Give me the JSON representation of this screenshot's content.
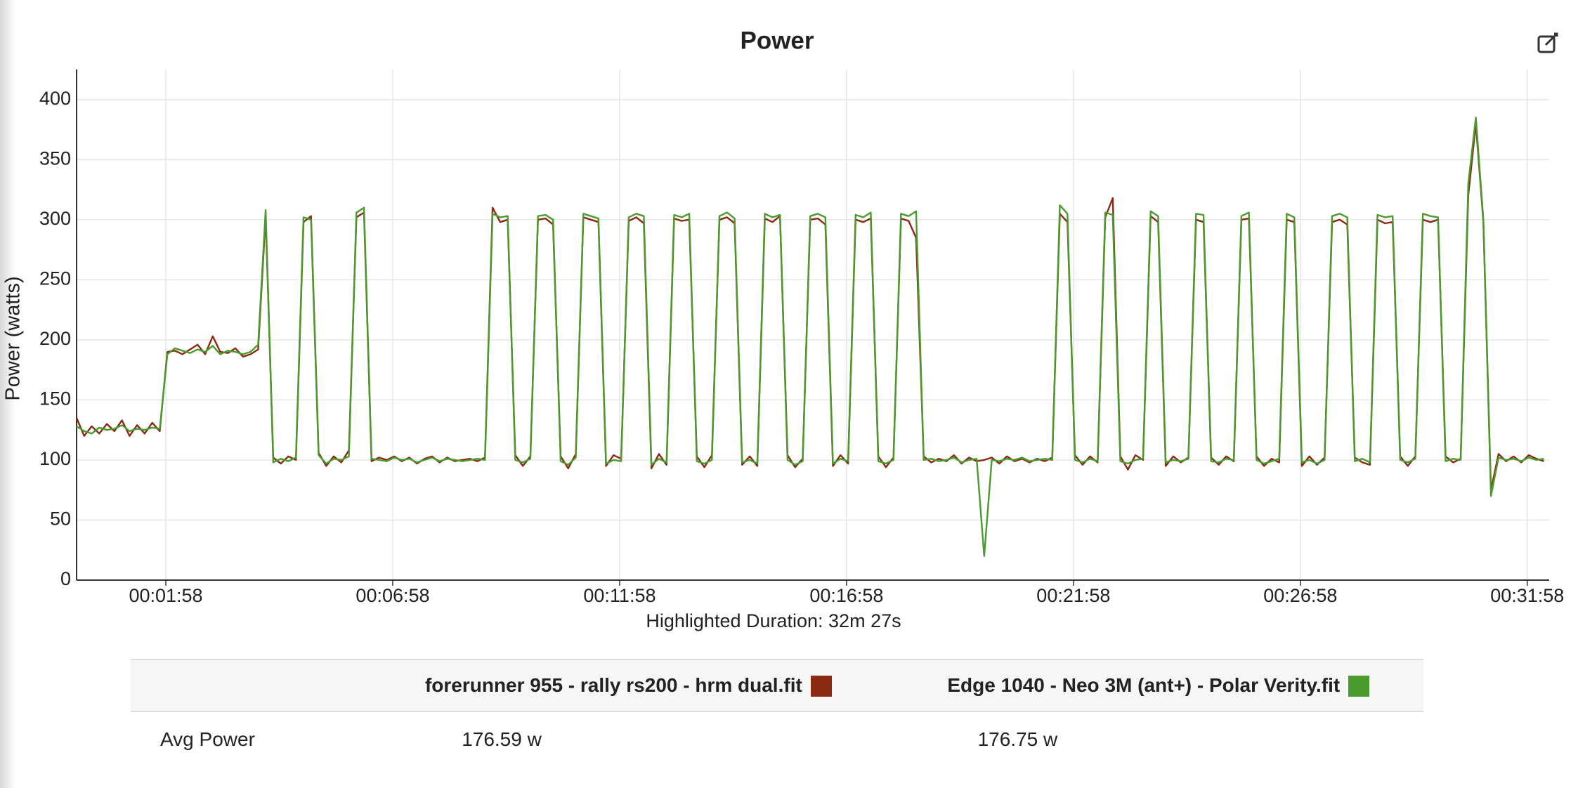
{
  "chart_data": {
    "type": "line",
    "title": "Power",
    "ylabel": "Power (watts)",
    "xlabel": "Highlighted Duration: 32m 27s",
    "grid": true,
    "xlim": [
      0,
      1947
    ],
    "ylim": [
      0,
      425
    ],
    "yticks": [
      0,
      50,
      100,
      150,
      200,
      250,
      300,
      350,
      400
    ],
    "xticks": [
      {
        "value": 118,
        "label": "00:01:58"
      },
      {
        "value": 418,
        "label": "00:06:58"
      },
      {
        "value": 718,
        "label": "00:11:58"
      },
      {
        "value": 1018,
        "label": "00:16:58"
      },
      {
        "value": 1318,
        "label": "00:21:58"
      },
      {
        "value": 1618,
        "label": "00:26:58"
      },
      {
        "value": 1918,
        "label": "00:31:58"
      }
    ],
    "x": [
      0,
      10,
      20,
      30,
      40,
      50,
      60,
      70,
      80,
      90,
      100,
      110,
      120,
      130,
      140,
      150,
      160,
      170,
      180,
      190,
      200,
      210,
      220,
      230,
      240,
      250,
      260,
      270,
      280,
      290,
      300,
      310,
      320,
      330,
      340,
      350,
      360,
      370,
      380,
      390,
      400,
      410,
      420,
      430,
      440,
      450,
      460,
      470,
      480,
      490,
      500,
      510,
      520,
      530,
      540,
      550,
      560,
      570,
      580,
      590,
      600,
      610,
      620,
      630,
      640,
      650,
      660,
      670,
      680,
      690,
      700,
      710,
      720,
      730,
      740,
      750,
      760,
      770,
      780,
      790,
      800,
      810,
      820,
      830,
      840,
      850,
      860,
      870,
      880,
      890,
      900,
      910,
      920,
      930,
      940,
      950,
      960,
      970,
      980,
      990,
      1000,
      1010,
      1020,
      1030,
      1040,
      1050,
      1060,
      1070,
      1080,
      1090,
      1100,
      1110,
      1120,
      1130,
      1140,
      1150,
      1160,
      1170,
      1180,
      1190,
      1200,
      1210,
      1220,
      1230,
      1240,
      1250,
      1260,
      1270,
      1280,
      1290,
      1300,
      1310,
      1320,
      1330,
      1340,
      1350,
      1360,
      1370,
      1380,
      1390,
      1400,
      1410,
      1420,
      1430,
      1440,
      1450,
      1460,
      1470,
      1480,
      1490,
      1500,
      1510,
      1520,
      1530,
      1540,
      1550,
      1560,
      1570,
      1580,
      1590,
      1600,
      1610,
      1620,
      1630,
      1640,
      1650,
      1660,
      1670,
      1680,
      1690,
      1700,
      1710,
      1720,
      1730,
      1740,
      1750,
      1760,
      1770,
      1780,
      1790,
      1800,
      1810,
      1820,
      1830,
      1840,
      1850,
      1860,
      1870,
      1880,
      1890,
      1900,
      1910,
      1920,
      1930,
      1940
    ],
    "series": [
      {
        "name": "forerunner 955 - rally rs200 - hrm dual.fit",
        "color": "#8b2a12",
        "values": [
          135,
          120,
          128,
          122,
          130,
          124,
          133,
          120,
          129,
          122,
          131,
          124,
          190,
          191,
          188,
          192,
          196,
          188,
          203,
          190,
          189,
          193,
          186,
          188,
          192,
          303,
          102,
          97,
          103,
          100,
          298,
          303,
          106,
          95,
          103,
          98,
          108,
          302,
          306,
          99,
          102,
          100,
          103,
          99,
          102,
          97,
          101,
          103,
          98,
          102,
          99,
          100,
          101,
          99,
          102,
          310,
          298,
          300,
          104,
          95,
          103,
          300,
          301,
          296,
          103,
          93,
          105,
          302,
          300,
          298,
          95,
          104,
          101,
          299,
          302,
          297,
          93,
          105,
          96,
          301,
          299,
          300,
          103,
          94,
          104,
          300,
          302,
          297,
          96,
          103,
          95,
          301,
          298,
          303,
          104,
          94,
          101,
          300,
          301,
          296,
          95,
          104,
          97,
          300,
          298,
          301,
          103,
          94,
          102,
          301,
          299,
          285,
          103,
          98,
          101,
          99,
          104,
          97,
          102,
          99,
          100,
          102,
          97,
          103,
          99,
          101,
          98,
          101,
          99,
          102,
          305,
          298,
          104,
          96,
          103,
          98,
          302,
          318,
          103,
          92,
          104,
          100,
          303,
          298,
          95,
          103,
          98,
          102,
          300,
          298,
          102,
          96,
          103,
          99,
          300,
          301,
          103,
          95,
          101,
          98,
          300,
          298,
          95,
          103,
          96,
          102,
          298,
          300,
          296,
          102,
          98,
          96,
          300,
          297,
          298,
          103,
          95,
          103,
          300,
          298,
          300,
          103,
          98,
          101,
          320,
          380,
          298,
          75,
          105,
          99,
          103,
          98,
          104,
          101,
          99
        ]
      },
      {
        "name": "Edge 1040 - Neo 3M (ant+) - Polar Verity.fit",
        "color": "#4a9a2e",
        "values": [
          128,
          124,
          122,
          127,
          125,
          126,
          129,
          124,
          126,
          125,
          127,
          126,
          188,
          193,
          191,
          189,
          192,
          190,
          195,
          188,
          191,
          190,
          188,
          190,
          196,
          308,
          98,
          101,
          99,
          102,
          302,
          300,
          104,
          97,
          101,
          100,
          103,
          306,
          310,
          101,
          100,
          99,
          102,
          100,
          101,
          98,
          100,
          102,
          99,
          101,
          100,
          99,
          100,
          101,
          100,
          305,
          302,
          303,
          100,
          98,
          101,
          303,
          304,
          300,
          99,
          96,
          102,
          305,
          303,
          301,
          97,
          100,
          99,
          302,
          305,
          303,
          96,
          101,
          98,
          304,
          302,
          305,
          99,
          97,
          100,
          303,
          306,
          301,
          98,
          100,
          97,
          305,
          302,
          304,
          100,
          96,
          99,
          303,
          305,
          302,
          97,
          101,
          99,
          304,
          302,
          306,
          99,
          97,
          100,
          305,
          303,
          307,
          100,
          101,
          99,
          100,
          102,
          98,
          100,
          101,
          20,
          100,
          99,
          101,
          100,
          102,
          99,
          100,
          101,
          100,
          312,
          305,
          100,
          98,
          101,
          99,
          306,
          304,
          99,
          97,
          100,
          101,
          307,
          303,
          98,
          100,
          99,
          101,
          305,
          304,
          99,
          98,
          101,
          100,
          303,
          306,
          100,
          97,
          99,
          101,
          305,
          302,
          98,
          100,
          97,
          100,
          303,
          305,
          302,
          99,
          101,
          98,
          304,
          302,
          303,
          100,
          98,
          101,
          305,
          303,
          302,
          99,
          101,
          100,
          330,
          385,
          300,
          70,
          102,
          100,
          101,
          99,
          102,
          100,
          101
        ]
      }
    ]
  },
  "table": {
    "row_label": "Avg Power",
    "cells": [
      "176.59 w",
      "176.75 w"
    ]
  }
}
